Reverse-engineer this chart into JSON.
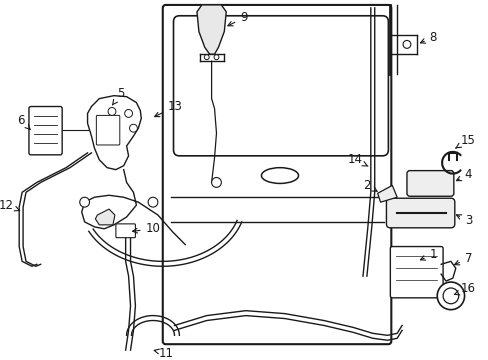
{
  "bg_color": "#ffffff",
  "line_color": "#1a1a1a",
  "fig_width": 4.89,
  "fig_height": 3.6,
  "font_size": 8.5
}
